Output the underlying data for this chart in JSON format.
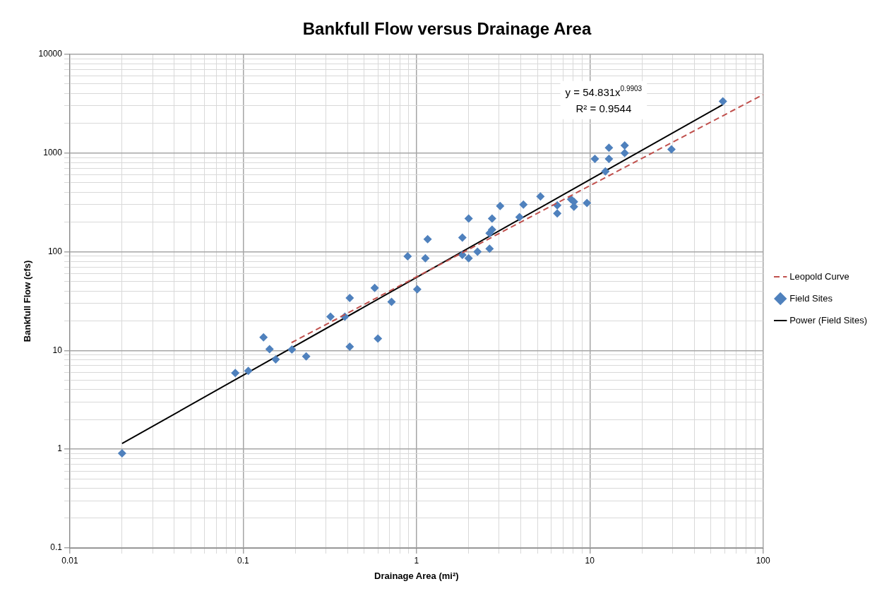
{
  "chart_data": {
    "type": "scatter",
    "title": "Bankfull Flow versus Drainage Area",
    "xlabel": "Drainage Area (mi²)",
    "ylabel": "Bankfull Flow (cfs)",
    "log": "xy",
    "grid": true,
    "legend": "right",
    "xlim": [
      0.01,
      100
    ],
    "ylim": [
      0.1,
      10000
    ],
    "xticks": [
      0.01,
      {
        "value": 0.02,
        "label": null
      },
      {
        "value": 0.03,
        "label": null
      },
      {
        "value": 0.04,
        "label": null
      },
      {
        "value": 0.05,
        "label": null
      },
      {
        "value": 0.06,
        "label": null
      },
      {
        "value": 0.07,
        "label": null
      },
      {
        "value": 0.08,
        "label": null
      },
      {
        "value": 0.09,
        "label": null
      },
      0.1,
      {
        "value": 0.2,
        "label": null
      },
      {
        "value": 0.3,
        "label": null
      },
      {
        "value": 0.4,
        "label": null
      },
      {
        "value": 0.5,
        "label": null
      },
      {
        "value": 0.6,
        "label": null
      },
      {
        "value": 0.7,
        "label": null
      },
      {
        "value": 0.8,
        "label": null
      },
      {
        "value": 0.9,
        "label": null
      },
      1,
      {
        "value": 2,
        "label": null
      },
      {
        "value": 3,
        "label": null
      },
      {
        "value": 4,
        "label": null
      },
      {
        "value": 5,
        "label": null
      },
      {
        "value": 6,
        "label": null
      },
      {
        "value": 7,
        "label": null
      },
      {
        "value": 8,
        "label": null
      },
      {
        "value": 9,
        "label": null
      },
      10,
      {
        "value": 20,
        "label": null
      },
      {
        "value": 30,
        "label": null
      },
      {
        "value": 40,
        "label": null
      },
      {
        "value": 50,
        "label": null
      },
      {
        "value": 60,
        "label": null
      },
      {
        "value": 70,
        "label": null
      },
      {
        "value": 80,
        "label": null
      },
      {
        "value": 90,
        "label": null
      },
      100
    ],
    "yticks": [
      0.1,
      {
        "value": 0.2,
        "label": null
      },
      {
        "value": 0.3,
        "label": null
      },
      {
        "value": 0.4,
        "label": null
      },
      {
        "value": 0.5,
        "label": null
      },
      {
        "value": 0.6,
        "label": null
      },
      {
        "value": 0.7,
        "label": null
      },
      {
        "value": 0.8,
        "label": null
      },
      {
        "value": 0.9,
        "label": null
      },
      1,
      {
        "value": 2,
        "label": null
      },
      {
        "value": 3,
        "label": null
      },
      {
        "value": 4,
        "label": null
      },
      {
        "value": 5,
        "label": null
      },
      {
        "value": 6,
        "label": null
      },
      {
        "value": 7,
        "label": null
      },
      {
        "value": 8,
        "label": null
      },
      {
        "value": 9,
        "label": null
      },
      10,
      {
        "value": 20,
        "label": null
      },
      {
        "value": 30,
        "label": null
      },
      {
        "value": 40,
        "label": null
      },
      {
        "value": 50,
        "label": null
      },
      {
        "value": 60,
        "label": null
      },
      {
        "value": 70,
        "label": null
      },
      {
        "value": 80,
        "label": null
      },
      {
        "value": 90,
        "label": null
      },
      100,
      {
        "value": 200,
        "label": null
      },
      {
        "value": 300,
        "label": null
      },
      {
        "value": 400,
        "label": null
      },
      {
        "value": 500,
        "label": null
      },
      {
        "value": 600,
        "label": null
      },
      {
        "value": 700,
        "label": null
      },
      {
        "value": 800,
        "label": null
      },
      {
        "value": 900,
        "label": null
      },
      1000,
      {
        "value": 2000,
        "label": null
      },
      {
        "value": 3000,
        "label": null
      },
      {
        "value": 4000,
        "label": null
      },
      {
        "value": 5000,
        "label": null
      },
      {
        "value": 6000,
        "label": null
      },
      {
        "value": 7000,
        "label": null
      },
      {
        "value": 8000,
        "label": null
      },
      {
        "value": 9000,
        "label": null
      },
      10000
    ],
    "annotations": [
      "y = 54.831x$^{0.9903}$",
      "R² = 0.9544"
    ],
    "series": [
      {
        "name": "Leopold Curve",
        "type": "line",
        "color": "#c0504d",
        "line_style": "dashed",
        "marker": "none",
        "x": [
          0.19,
          100
        ],
        "values": [
          12,
          3900
        ]
      },
      {
        "name": "Field Sites",
        "type": "scatter",
        "color": "#4f81bd",
        "marker": "diamond",
        "x": [
          0.02,
          0.09,
          0.107,
          0.131,
          0.142,
          0.154,
          0.191,
          0.231,
          0.319,
          0.386,
          0.412,
          0.412,
          0.574,
          0.599,
          0.718,
          1.01,
          0.889,
          1.125,
          1.16,
          1.84,
          1.84,
          2.0,
          2.0,
          2.25,
          2.64,
          2.73,
          2.64,
          2.73,
          3.04,
          4.14,
          3.93,
          5.19,
          6.49,
          6.49,
          7.8,
          8.1,
          8.1,
          9.63,
          12.3,
          10.7,
          12.9,
          12.9,
          15.9,
          15.9,
          29.6,
          58.6
        ],
        "values": [
          0.91,
          5.9,
          6.2,
          13.6,
          10.3,
          8.1,
          10.2,
          8.7,
          22,
          22,
          34,
          10.9,
          43,
          13.2,
          31,
          41.6,
          90,
          86,
          134,
          139,
          93,
          86,
          217,
          100,
          107,
          217,
          154,
          167,
          290,
          300,
          224,
          363,
          295,
          244,
          339,
          321,
          285,
          311,
          650,
          870,
          870,
          1130,
          1190,
          1000,
          1090,
          3330
        ]
      },
      {
        "name": "Power (Field Sites)",
        "type": "line",
        "color": "#000000",
        "line_style": "solid",
        "marker": "none",
        "x": [
          0.02,
          58.6
        ],
        "values": [
          1.14,
          3090
        ]
      }
    ]
  }
}
